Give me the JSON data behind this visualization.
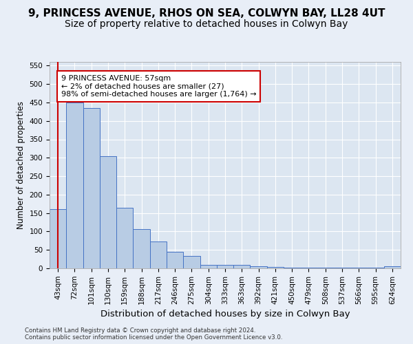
{
  "title": "9, PRINCESS AVENUE, RHOS ON SEA, COLWYN BAY, LL28 4UT",
  "subtitle": "Size of property relative to detached houses in Colwyn Bay",
  "xlabel": "Distribution of detached houses by size in Colwyn Bay",
  "ylabel": "Number of detached properties",
  "categories": [
    "43sqm",
    "72sqm",
    "101sqm",
    "130sqm",
    "159sqm",
    "188sqm",
    "217sqm",
    "246sqm",
    "275sqm",
    "304sqm",
    "333sqm",
    "363sqm",
    "392sqm",
    "421sqm",
    "450sqm",
    "479sqm",
    "508sqm",
    "537sqm",
    "566sqm",
    "595sqm",
    "624sqm"
  ],
  "values": [
    160,
    450,
    435,
    305,
    165,
    107,
    73,
    45,
    33,
    10,
    10,
    10,
    5,
    3,
    2,
    2,
    1,
    1,
    1,
    1,
    5
  ],
  "bar_color": "#b8cce4",
  "bar_edge_color": "#4472c4",
  "marker_line_color": "#cc0000",
  "annotation_text": "9 PRINCESS AVENUE: 57sqm\n← 2% of detached houses are smaller (27)\n98% of semi-detached houses are larger (1,764) →",
  "annotation_box_color": "#ffffff",
  "annotation_box_edge_color": "#cc0000",
  "ylim": [
    0,
    560
  ],
  "yticks": [
    0,
    50,
    100,
    150,
    200,
    250,
    300,
    350,
    400,
    450,
    500,
    550
  ],
  "background_color": "#e8eef7",
  "plot_bg_color": "#dce6f1",
  "title_fontsize": 11,
  "subtitle_fontsize": 10,
  "xlabel_fontsize": 9.5,
  "ylabel_fontsize": 8.5,
  "tick_fontsize": 7.5,
  "footer_text": "Contains HM Land Registry data © Crown copyright and database right 2024.\nContains public sector information licensed under the Open Government Licence v3.0."
}
